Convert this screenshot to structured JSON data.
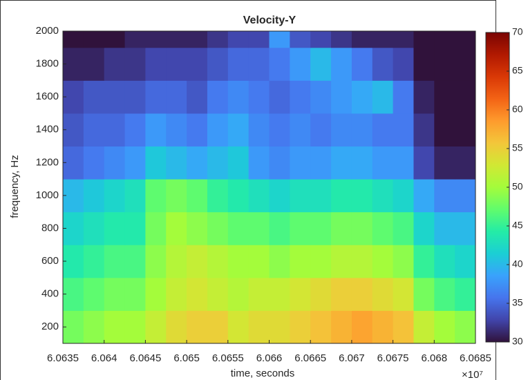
{
  "chart_data": {
    "type": "heatmap",
    "title": "Velocity-Y",
    "xlabel": "time, seconds",
    "ylabel": "frequency, Hz",
    "x_multiplier": "×10⁷",
    "x_edges": [
      6.0635,
      6.06375,
      6.064,
      6.06425,
      6.0645,
      6.06475,
      6.065,
      6.06525,
      6.0655,
      6.06575,
      6.066,
      6.06625,
      6.0665,
      6.06675,
      6.067,
      6.06725,
      6.0675,
      6.06775,
      6.068,
      6.06825,
      6.0685
    ],
    "y_edges": [
      100,
      300,
      500,
      700,
      900,
      1100,
      1300,
      1500,
      1700,
      1900,
      2000
    ],
    "z": [
      [
        48,
        49,
        50,
        50,
        52,
        54,
        55,
        55,
        53,
        54,
        54,
        55,
        56,
        57,
        58,
        57,
        56,
        52,
        50,
        49
      ],
      [
        46,
        47,
        48,
        48,
        50,
        52,
        53,
        52,
        51,
        52,
        52,
        53,
        54,
        55,
        55,
        54,
        53,
        48,
        46,
        45
      ],
      [
        44,
        45,
        46,
        46,
        49,
        51,
        52,
        51,
        50,
        50,
        49,
        50,
        50,
        51,
        51,
        50,
        49,
        45,
        43,
        42
      ],
      [
        42,
        43,
        44,
        44,
        48,
        50,
        49,
        48,
        47,
        47,
        46,
        47,
        47,
        48,
        48,
        47,
        46,
        42,
        40,
        40
      ],
      [
        40,
        41,
        42,
        43,
        47,
        48,
        47,
        45,
        44,
        43,
        42,
        43,
        43,
        44,
        44,
        43,
        42,
        39,
        37,
        37
      ],
      [
        35,
        36,
        37,
        38,
        41,
        40,
        39,
        40,
        41,
        38,
        37,
        38,
        38,
        39,
        39,
        38,
        38,
        33,
        31,
        31
      ],
      [
        34,
        35,
        35,
        36,
        38,
        37,
        36,
        38,
        39,
        37,
        36,
        37,
        36,
        37,
        37,
        36,
        36,
        32,
        30,
        30
      ],
      [
        33,
        34,
        34,
        34,
        35,
        35,
        34,
        36,
        37,
        36,
        35,
        36,
        37,
        38,
        39,
        40,
        36,
        31,
        30,
        30
      ],
      [
        31,
        31,
        32,
        32,
        33,
        33,
        33,
        34,
        35,
        35,
        36,
        38,
        40,
        38,
        36,
        34,
        33,
        30,
        30,
        30
      ],
      [
        30,
        30,
        30,
        31,
        31,
        31,
        31,
        32,
        33,
        33,
        38,
        34,
        33,
        32,
        31,
        31,
        31,
        30,
        30,
        30
      ]
    ],
    "xlim": [
      6.0635,
      6.0685
    ],
    "xticks": [
      6.0635,
      6.064,
      6.0645,
      6.065,
      6.0655,
      6.066,
      6.0665,
      6.067,
      6.0675,
      6.068,
      6.0685
    ],
    "ylim": [
      100,
      2000
    ],
    "yticks": [
      200,
      400,
      600,
      800,
      1000,
      1200,
      1400,
      1600,
      1800,
      2000
    ],
    "clim": [
      30,
      70
    ],
    "cticks": [
      30,
      35,
      40,
      45,
      50,
      55,
      60,
      65,
      70
    ],
    "colormap": [
      "#30123b",
      "#4145ab",
      "#4675ed",
      "#39a2fc",
      "#1bcfd4",
      "#24eca6",
      "#61fc6c",
      "#a4fc3b",
      "#d1e834",
      "#f3c63a",
      "#fe9b2d",
      "#f36315",
      "#d93806",
      "#b11901",
      "#7a0403"
    ]
  }
}
